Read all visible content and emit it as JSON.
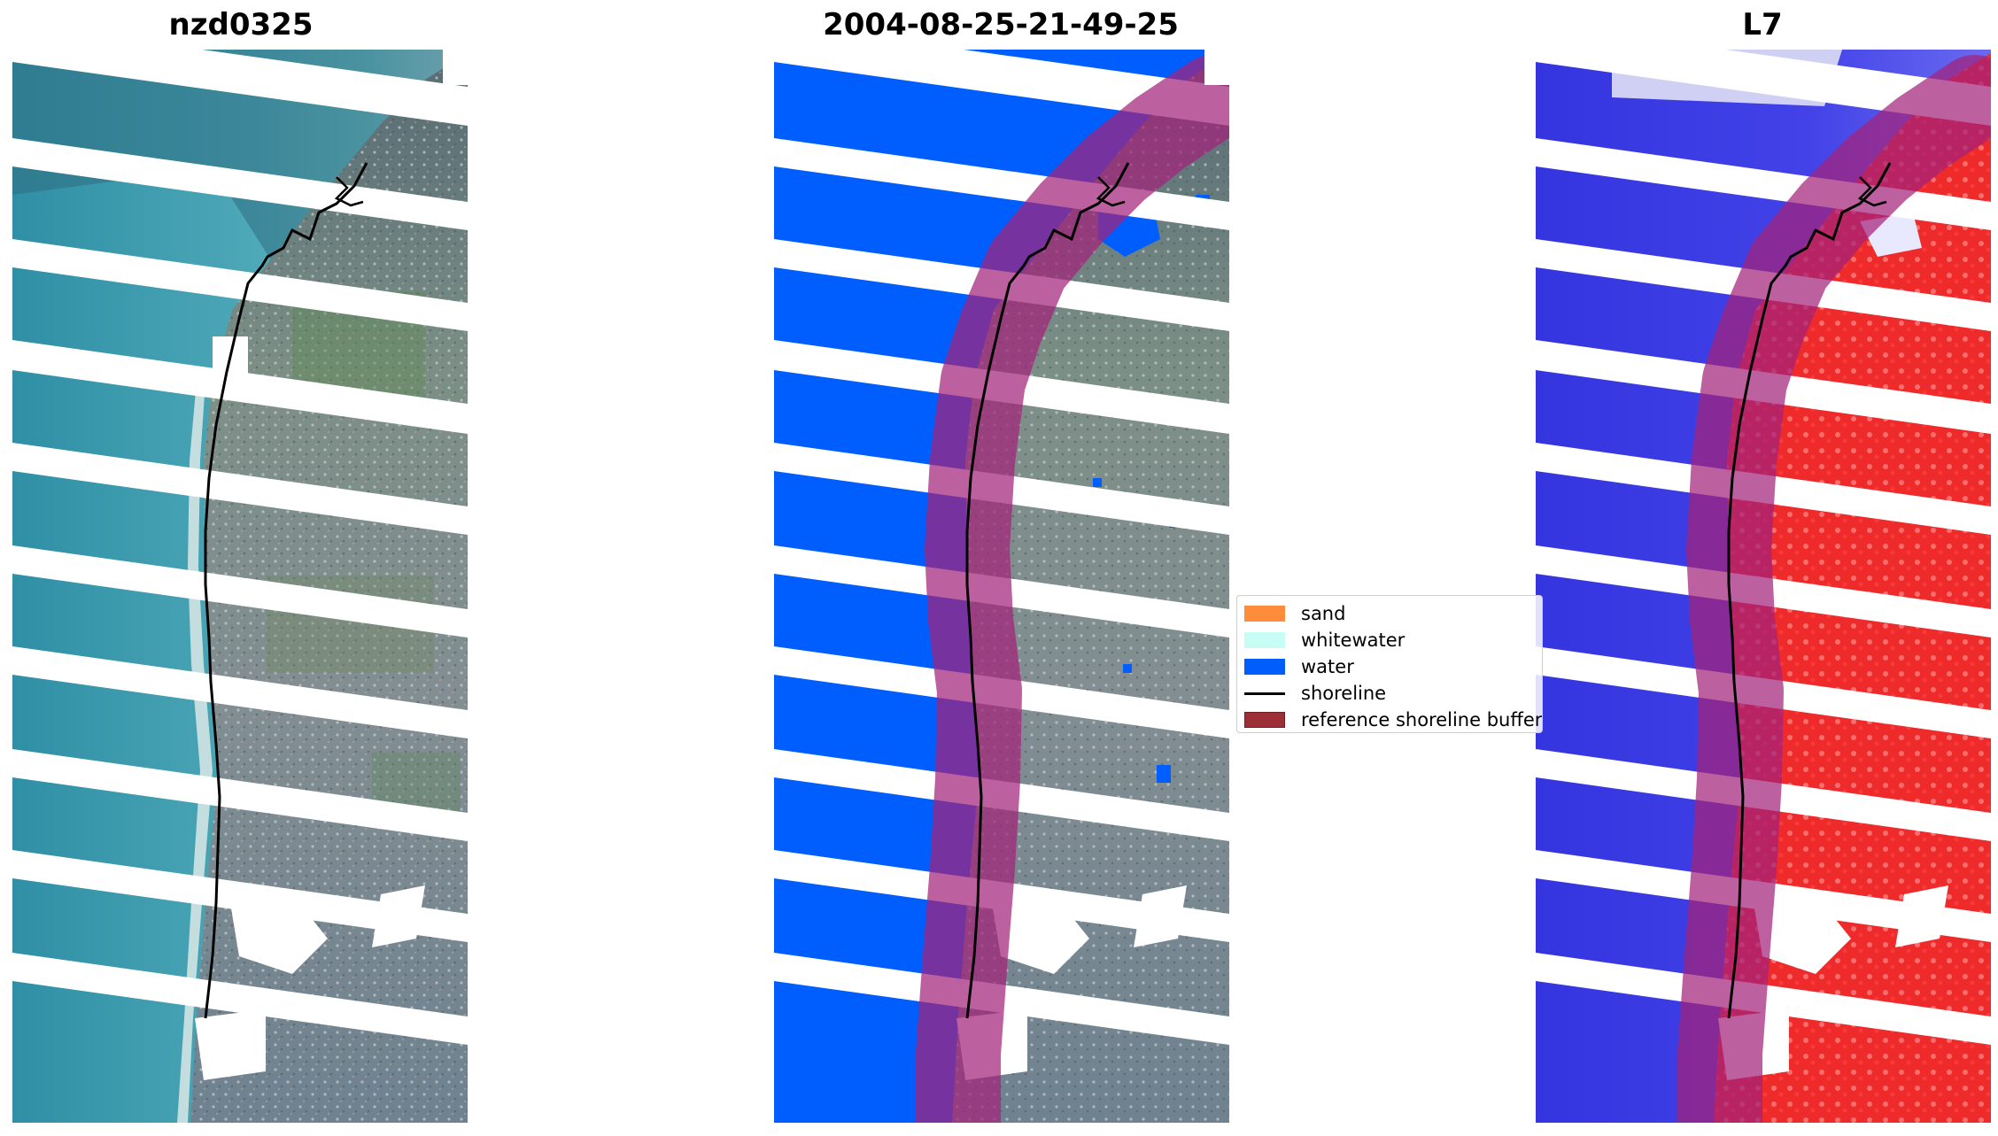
{
  "panels": [
    {
      "title": "nzd0325"
    },
    {
      "title": "2004-08-25-21-49-25"
    },
    {
      "title": "L7"
    }
  ],
  "legend": {
    "items": [
      {
        "label": "sand",
        "type": "patch",
        "color": "#ff8c3a"
      },
      {
        "label": "whitewater",
        "type": "patch",
        "color": "#c8fdf6"
      },
      {
        "label": "water",
        "type": "patch",
        "color": "#005eff"
      },
      {
        "label": "shoreline",
        "type": "line",
        "color": "#000000"
      },
      {
        "label": "reference shoreline buffer",
        "type": "patch",
        "color": "#9b2f35"
      }
    ]
  },
  "colors": {
    "water_class": "#005eff",
    "buffer_overlay": "#a4237a",
    "shoreline": "#000000",
    "ocean_rgb": "#3d97a8",
    "land_rgb": "#7a8a90",
    "index_water": "#3535e0",
    "index_land": "#ee2020"
  }
}
